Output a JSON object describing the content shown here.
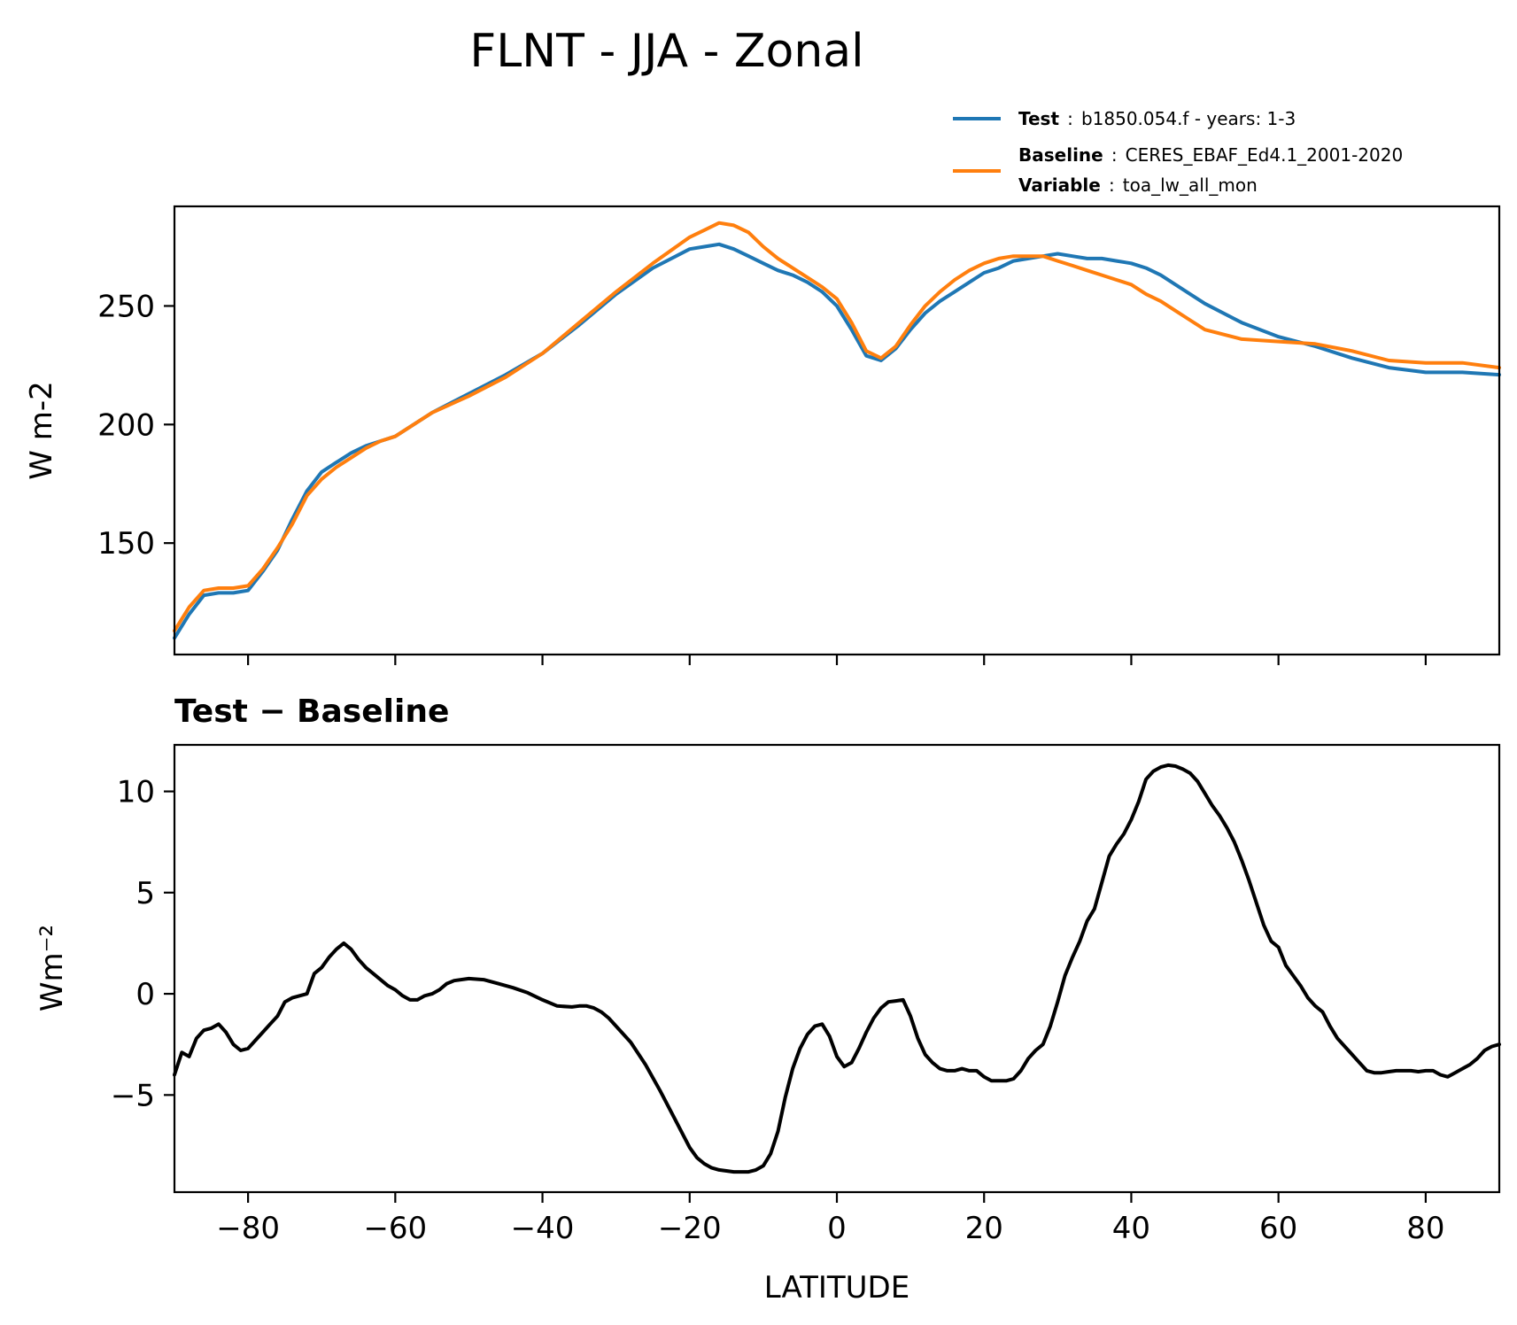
{
  "figure": {
    "title": "FLNT - JJA - Zonal"
  },
  "legend": {
    "test_key": "Test",
    "test_value": "b1850.054.f - years: 1-3",
    "baseline_key": "Baseline",
    "baseline_value": "CERES_EBAF_Ed4.1_2001-2020",
    "variable_key": "Variable",
    "variable_value": "toa_lw_all_mon",
    "sep": ":"
  },
  "colors": {
    "test": "#1f77b4",
    "baseline": "#ff7f0e",
    "diff": "#000000"
  },
  "chart_data": [
    {
      "type": "line",
      "panel": "top",
      "ylabel": "W m-2",
      "xlim": [
        -90,
        90
      ],
      "ylim": [
        103,
        292
      ],
      "yticks": [
        150,
        200,
        250
      ],
      "xticks": [
        -80,
        -60,
        -40,
        -20,
        0,
        20,
        40,
        60,
        80
      ],
      "grid": false,
      "legend_position": "above-right",
      "series": [
        {
          "name": "Test",
          "x": [
            -90,
            -88,
            -86,
            -84,
            -82,
            -80,
            -78,
            -76,
            -74,
            -72,
            -70,
            -68,
            -66,
            -64,
            -62,
            -60,
            -55,
            -50,
            -45,
            -40,
            -35,
            -30,
            -25,
            -20,
            -18,
            -16,
            -14,
            -12,
            -10,
            -8,
            -6,
            -4,
            -2,
            0,
            2,
            4,
            6,
            8,
            10,
            12,
            14,
            16,
            18,
            20,
            22,
            24,
            26,
            28,
            30,
            32,
            34,
            36,
            38,
            40,
            42,
            44,
            46,
            48,
            50,
            55,
            60,
            65,
            70,
            75,
            80,
            85,
            90
          ],
          "y": [
            110,
            120,
            128,
            129,
            129,
            130,
            138,
            147,
            160,
            172,
            180,
            184,
            188,
            191,
            193,
            195,
            205,
            213,
            221,
            230,
            242,
            255,
            266,
            274,
            275,
            276,
            274,
            271,
            268,
            265,
            263,
            260,
            256,
            250,
            240,
            229,
            227,
            232,
            240,
            247,
            252,
            256,
            260,
            264,
            266,
            269,
            270,
            271,
            272,
            271,
            270,
            270,
            269,
            268,
            266,
            263,
            259,
            255,
            251,
            243,
            237,
            233,
            228,
            224,
            222,
            222,
            221
          ]
        },
        {
          "name": "Baseline",
          "x": [
            -90,
            -88,
            -86,
            -84,
            -82,
            -80,
            -78,
            -76,
            -74,
            -72,
            -70,
            -68,
            -66,
            -64,
            -62,
            -60,
            -55,
            -50,
            -45,
            -40,
            -35,
            -30,
            -25,
            -20,
            -18,
            -16,
            -14,
            -12,
            -10,
            -8,
            -6,
            -4,
            -2,
            0,
            2,
            4,
            6,
            8,
            10,
            12,
            14,
            16,
            18,
            20,
            22,
            24,
            26,
            28,
            30,
            32,
            34,
            36,
            38,
            40,
            42,
            44,
            46,
            48,
            50,
            55,
            60,
            65,
            70,
            75,
            80,
            85,
            90
          ],
          "y": [
            113,
            123,
            130,
            131,
            131,
            132,
            139,
            148,
            158,
            170,
            177,
            182,
            186,
            190,
            193,
            195,
            205,
            212,
            220,
            230,
            243,
            256,
            268,
            279,
            282,
            285,
            284,
            281,
            275,
            270,
            266,
            262,
            258,
            253,
            243,
            231,
            228,
            233,
            242,
            250,
            256,
            261,
            265,
            268,
            270,
            271,
            271,
            271,
            269,
            267,
            265,
            263,
            261,
            259,
            255,
            252,
            248,
            244,
            240,
            236,
            235,
            234,
            231,
            227,
            226,
            226,
            224
          ]
        }
      ]
    },
    {
      "type": "line",
      "panel": "bottom",
      "title": "Test − Baseline",
      "xlabel": "LATITUDE",
      "ylabel": "Wm⁻²",
      "xlim": [
        -90,
        90
      ],
      "ylim": [
        -9.8,
        12.3
      ],
      "yticks": [
        -5,
        0,
        5,
        10
      ],
      "xticks": [
        -80,
        -60,
        -40,
        -20,
        0,
        20,
        40,
        60,
        80
      ],
      "xtick_labels": [
        "−80",
        "−60",
        "−40",
        "−20",
        "0",
        "20",
        "40",
        "60",
        "80"
      ],
      "ytick_labels": [
        "−5",
        "0",
        "5",
        "10"
      ],
      "grid": false,
      "series": [
        {
          "x": [
            -90,
            -89,
            -88,
            -87,
            -86,
            -85,
            -84,
            -83,
            -82,
            -81,
            -80,
            -79,
            -78,
            -77,
            -76,
            -75,
            -74,
            -73,
            -72,
            -71,
            -70,
            -69,
            -68,
            -67,
            -66,
            -65,
            -64,
            -63,
            -62,
            -61,
            -60,
            -59,
            -58,
            -57,
            -56,
            -55,
            -54,
            -53,
            -52,
            -50,
            -48,
            -46,
            -44,
            -42,
            -40,
            -38,
            -36,
            -35,
            -34,
            -33,
            -32,
            -31,
            -30,
            -28,
            -26,
            -24,
            -22,
            -20,
            -19,
            -18,
            -17,
            -16,
            -15,
            -14,
            -13,
            -12,
            -11,
            -10,
            -9,
            -8,
            -7,
            -6,
            -5,
            -4,
            -3,
            -2,
            -1,
            0,
            1,
            2,
            3,
            4,
            5,
            6,
            7,
            8,
            9,
            10,
            11,
            12,
            13,
            14,
            15,
            16,
            17,
            18,
            19,
            20,
            21,
            22,
            23,
            24,
            25,
            26,
            27,
            28,
            29,
            30,
            31,
            32,
            33,
            34,
            35,
            36,
            37,
            38,
            39,
            40,
            41,
            42,
            43,
            44,
            45,
            46,
            47,
            48,
            49,
            50,
            51,
            52,
            53,
            54,
            55,
            56,
            57,
            58,
            59,
            60,
            61,
            62,
            63,
            64,
            65,
            66,
            67,
            68,
            69,
            70,
            71,
            72,
            73,
            74,
            75,
            76,
            77,
            78,
            79,
            80,
            81,
            82,
            83,
            84,
            85,
            86,
            87,
            88,
            89,
            90
          ],
          "y": [
            -4.0,
            -2.9,
            -3.1,
            -2.2,
            -1.8,
            -1.7,
            -1.5,
            -1.9,
            -2.5,
            -2.8,
            -2.7,
            -2.3,
            -1.9,
            -1.5,
            -1.1,
            -0.4,
            -0.2,
            -0.1,
            0.0,
            1.0,
            1.3,
            1.8,
            2.2,
            2.5,
            2.2,
            1.7,
            1.3,
            1.0,
            0.7,
            0.4,
            0.2,
            -0.1,
            -0.3,
            -0.3,
            -0.1,
            0.0,
            0.2,
            0.5,
            0.65,
            0.75,
            0.7,
            0.5,
            0.3,
            0.05,
            -0.3,
            -0.6,
            -0.65,
            -0.6,
            -0.6,
            -0.7,
            -0.9,
            -1.2,
            -1.6,
            -2.4,
            -3.5,
            -4.8,
            -6.2,
            -7.6,
            -8.1,
            -8.4,
            -8.6,
            -8.7,
            -8.75,
            -8.8,
            -8.8,
            -8.8,
            -8.7,
            -8.5,
            -7.9,
            -6.8,
            -5.1,
            -3.7,
            -2.7,
            -2.0,
            -1.6,
            -1.5,
            -2.1,
            -3.1,
            -3.6,
            -3.4,
            -2.7,
            -1.9,
            -1.2,
            -0.7,
            -0.4,
            -0.35,
            -0.3,
            -1.1,
            -2.2,
            -3.0,
            -3.4,
            -3.7,
            -3.8,
            -3.8,
            -3.7,
            -3.8,
            -3.8,
            -4.1,
            -4.3,
            -4.3,
            -4.3,
            -4.2,
            -3.8,
            -3.2,
            -2.8,
            -2.5,
            -1.6,
            -0.4,
            0.9,
            1.8,
            2.6,
            3.6,
            4.2,
            5.5,
            6.8,
            7.4,
            7.9,
            8.6,
            9.5,
            10.6,
            11.0,
            11.2,
            11.3,
            11.25,
            11.1,
            10.9,
            10.5,
            9.9,
            9.3,
            8.8,
            8.2,
            7.5,
            6.6,
            5.6,
            4.5,
            3.4,
            2.6,
            2.3,
            1.4,
            0.9,
            0.4,
            -0.2,
            -0.6,
            -0.9,
            -1.6,
            -2.2,
            -2.6,
            -3.0,
            -3.4,
            -3.8,
            -3.9,
            -3.9,
            -3.85,
            -3.8,
            -3.8,
            -3.8,
            -3.85,
            -3.8,
            -3.8,
            -4.0,
            -4.1,
            -3.9,
            -3.7,
            -3.5,
            -3.2,
            -2.8,
            -2.6,
            -2.5
          ]
        }
      ]
    }
  ]
}
